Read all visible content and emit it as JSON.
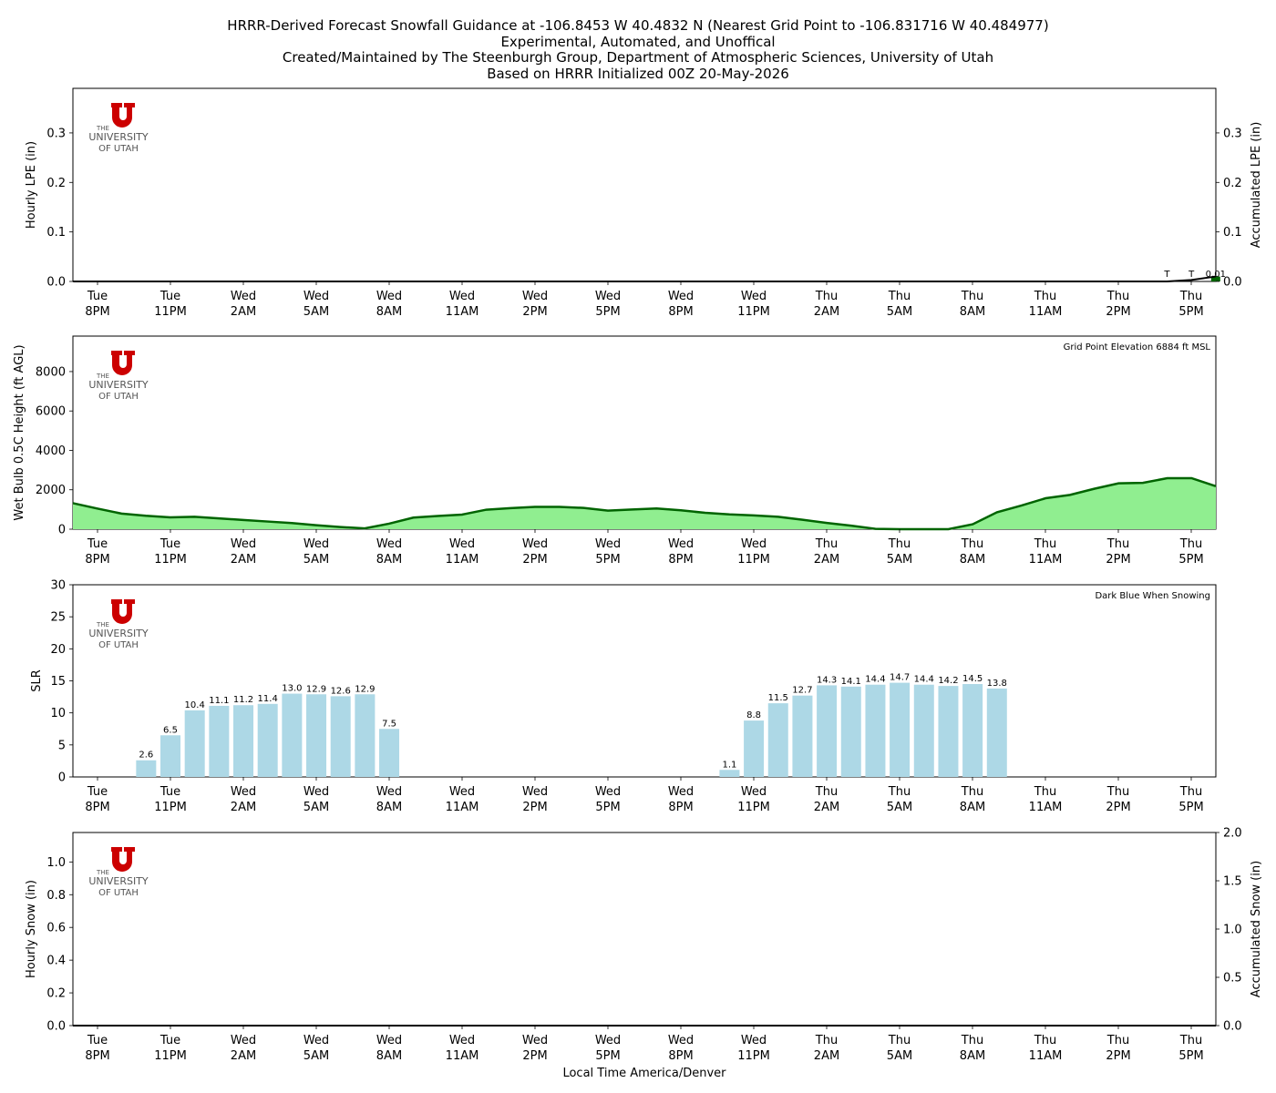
{
  "title_lines": [
    "HRRR-Derived Forecast Snowfall Guidance at -106.8453 W 40.4832 N (Nearest Grid Point to -106.831716 W 40.484977)",
    "Experimental, Automated, and Unoffical",
    "Created/Maintained by The Steenburgh Group, Department of Atmospheric Sciences, University of Utah",
    "Based on HRRR Initialized 00Z 20-May-2026"
  ],
  "logo": {
    "line1": "THE",
    "line2": "UNIVERSITY",
    "line3": "OF UTAH",
    "color": "#cc0000"
  },
  "time_axis": {
    "xlabel": "Local Time America/Denver",
    "ticks": [
      {
        "day": "Tue",
        "time": "8PM"
      },
      {
        "day": "Tue",
        "time": "11PM"
      },
      {
        "day": "Wed",
        "time": "2AM"
      },
      {
        "day": "Wed",
        "time": "5AM"
      },
      {
        "day": "Wed",
        "time": "8AM"
      },
      {
        "day": "Wed",
        "time": "11AM"
      },
      {
        "day": "Wed",
        "time": "2PM"
      },
      {
        "day": "Wed",
        "time": "5PM"
      },
      {
        "day": "Wed",
        "time": "8PM"
      },
      {
        "day": "Wed",
        "time": "11PM"
      },
      {
        "day": "Thu",
        "time": "2AM"
      },
      {
        "day": "Thu",
        "time": "5AM"
      },
      {
        "day": "Thu",
        "time": "8AM"
      },
      {
        "day": "Thu",
        "time": "11AM"
      },
      {
        "day": "Thu",
        "time": "2PM"
      },
      {
        "day": "Thu",
        "time": "5PM"
      }
    ]
  },
  "chart_data": [
    {
      "type": "bar",
      "ylabel": "Hourly LPE (in)",
      "y2label": "Accumulated LPE (in)",
      "ylim": [
        0,
        0.39
      ],
      "yticks": [
        "0.0",
        "0.1",
        "0.2",
        "0.3"
      ],
      "y2ticks": [
        "0.0",
        "0.1",
        "0.2",
        "0.3"
      ],
      "hourly_lpe": [
        {
          "hour": 46,
          "value": 0.01
        }
      ],
      "accumulated_lpe": [
        {
          "hour": 44,
          "value": 0.0
        },
        {
          "hour": 45,
          "value": 0.003
        },
        {
          "hour": 46,
          "value": 0.01
        }
      ],
      "bar_labels": [
        {
          "hour": 44,
          "text": "T"
        },
        {
          "hour": 45,
          "text": "T"
        },
        {
          "hour": 46,
          "text": "0.01"
        }
      ],
      "bar_color": "#006400",
      "line_color": "#000000"
    },
    {
      "type": "area",
      "ylabel": "Wet Bulb 0.5C Height (ft AGL)",
      "annotation": "Grid Point Elevation 6884 ft MSL",
      "ylim": [
        0,
        9800
      ],
      "yticks": [
        "0",
        "2000",
        "4000",
        "6000",
        "8000"
      ],
      "values": [
        1320,
        1050,
        790,
        680,
        600,
        630,
        550,
        470,
        390,
        310,
        200,
        110,
        40,
        280,
        590,
        670,
        740,
        990,
        1070,
        1130,
        1130,
        1080,
        940,
        1000,
        1050,
        960,
        830,
        750,
        700,
        630,
        480,
        320,
        180,
        20,
        -20,
        -20,
        -20,
        250,
        860,
        1200,
        1570,
        1740,
        2050,
        2330,
        2350,
        2590,
        2590,
        2180
      ],
      "fill_color": "#90ee90",
      "line_color": "#006400"
    },
    {
      "type": "bar",
      "ylabel": "SLR",
      "annotation": "Dark Blue When Snowing",
      "ylim": [
        0,
        30
      ],
      "yticks": [
        "0",
        "5",
        "10",
        "15",
        "20",
        "25",
        "30"
      ],
      "bars": [
        {
          "hour": 2,
          "value": 2.6,
          "label": "2.6"
        },
        {
          "hour": 3,
          "value": 6.5,
          "label": "6.5"
        },
        {
          "hour": 4,
          "value": 10.4,
          "label": "10.4"
        },
        {
          "hour": 5,
          "value": 11.1,
          "label": "11.1"
        },
        {
          "hour": 6,
          "value": 11.2,
          "label": "11.2"
        },
        {
          "hour": 7,
          "value": 11.4,
          "label": "11.4"
        },
        {
          "hour": 8,
          "value": 13.0,
          "label": "13.0"
        },
        {
          "hour": 9,
          "value": 12.9,
          "label": "12.9"
        },
        {
          "hour": 10,
          "value": 12.6,
          "label": "12.6"
        },
        {
          "hour": 11,
          "value": 12.9,
          "label": "12.9"
        },
        {
          "hour": 12,
          "value": 7.5,
          "label": "7.5"
        },
        {
          "hour": 26,
          "value": 1.1,
          "label": "1.1"
        },
        {
          "hour": 27,
          "value": 8.8,
          "label": "8.8"
        },
        {
          "hour": 28,
          "value": 11.5,
          "label": "11.5"
        },
        {
          "hour": 29,
          "value": 12.7,
          "label": "12.7"
        },
        {
          "hour": 30,
          "value": 14.3,
          "label": "14.3"
        },
        {
          "hour": 31,
          "value": 14.1,
          "label": "14.1"
        },
        {
          "hour": 32,
          "value": 14.4,
          "label": "14.4"
        },
        {
          "hour": 33,
          "value": 14.7,
          "label": "14.7"
        },
        {
          "hour": 34,
          "value": 14.4,
          "label": "14.4"
        },
        {
          "hour": 35,
          "value": 14.2,
          "label": "14.2"
        },
        {
          "hour": 36,
          "value": 14.5,
          "label": "14.5"
        },
        {
          "hour": 37,
          "value": 13.8,
          "label": "13.8"
        }
      ],
      "bar_color": "#add8e6"
    },
    {
      "type": "bar",
      "ylabel": "Hourly Snow (in)",
      "y2label": "Accumulated Snow (in)",
      "ylim": [
        0,
        1.18
      ],
      "y2lim": [
        0,
        2.0
      ],
      "yticks": [
        "0.0",
        "0.2",
        "0.4",
        "0.6",
        "0.8",
        "1.0"
      ],
      "y2ticks": [
        "0.0",
        "0.5",
        "1.0",
        "1.5",
        "2.0"
      ],
      "hourly_snow": [],
      "accumulated_snow": [
        {
          "hour": 0,
          "value": 0
        },
        {
          "hour": 47,
          "value": 0
        }
      ],
      "line_color": "#000000"
    }
  ]
}
